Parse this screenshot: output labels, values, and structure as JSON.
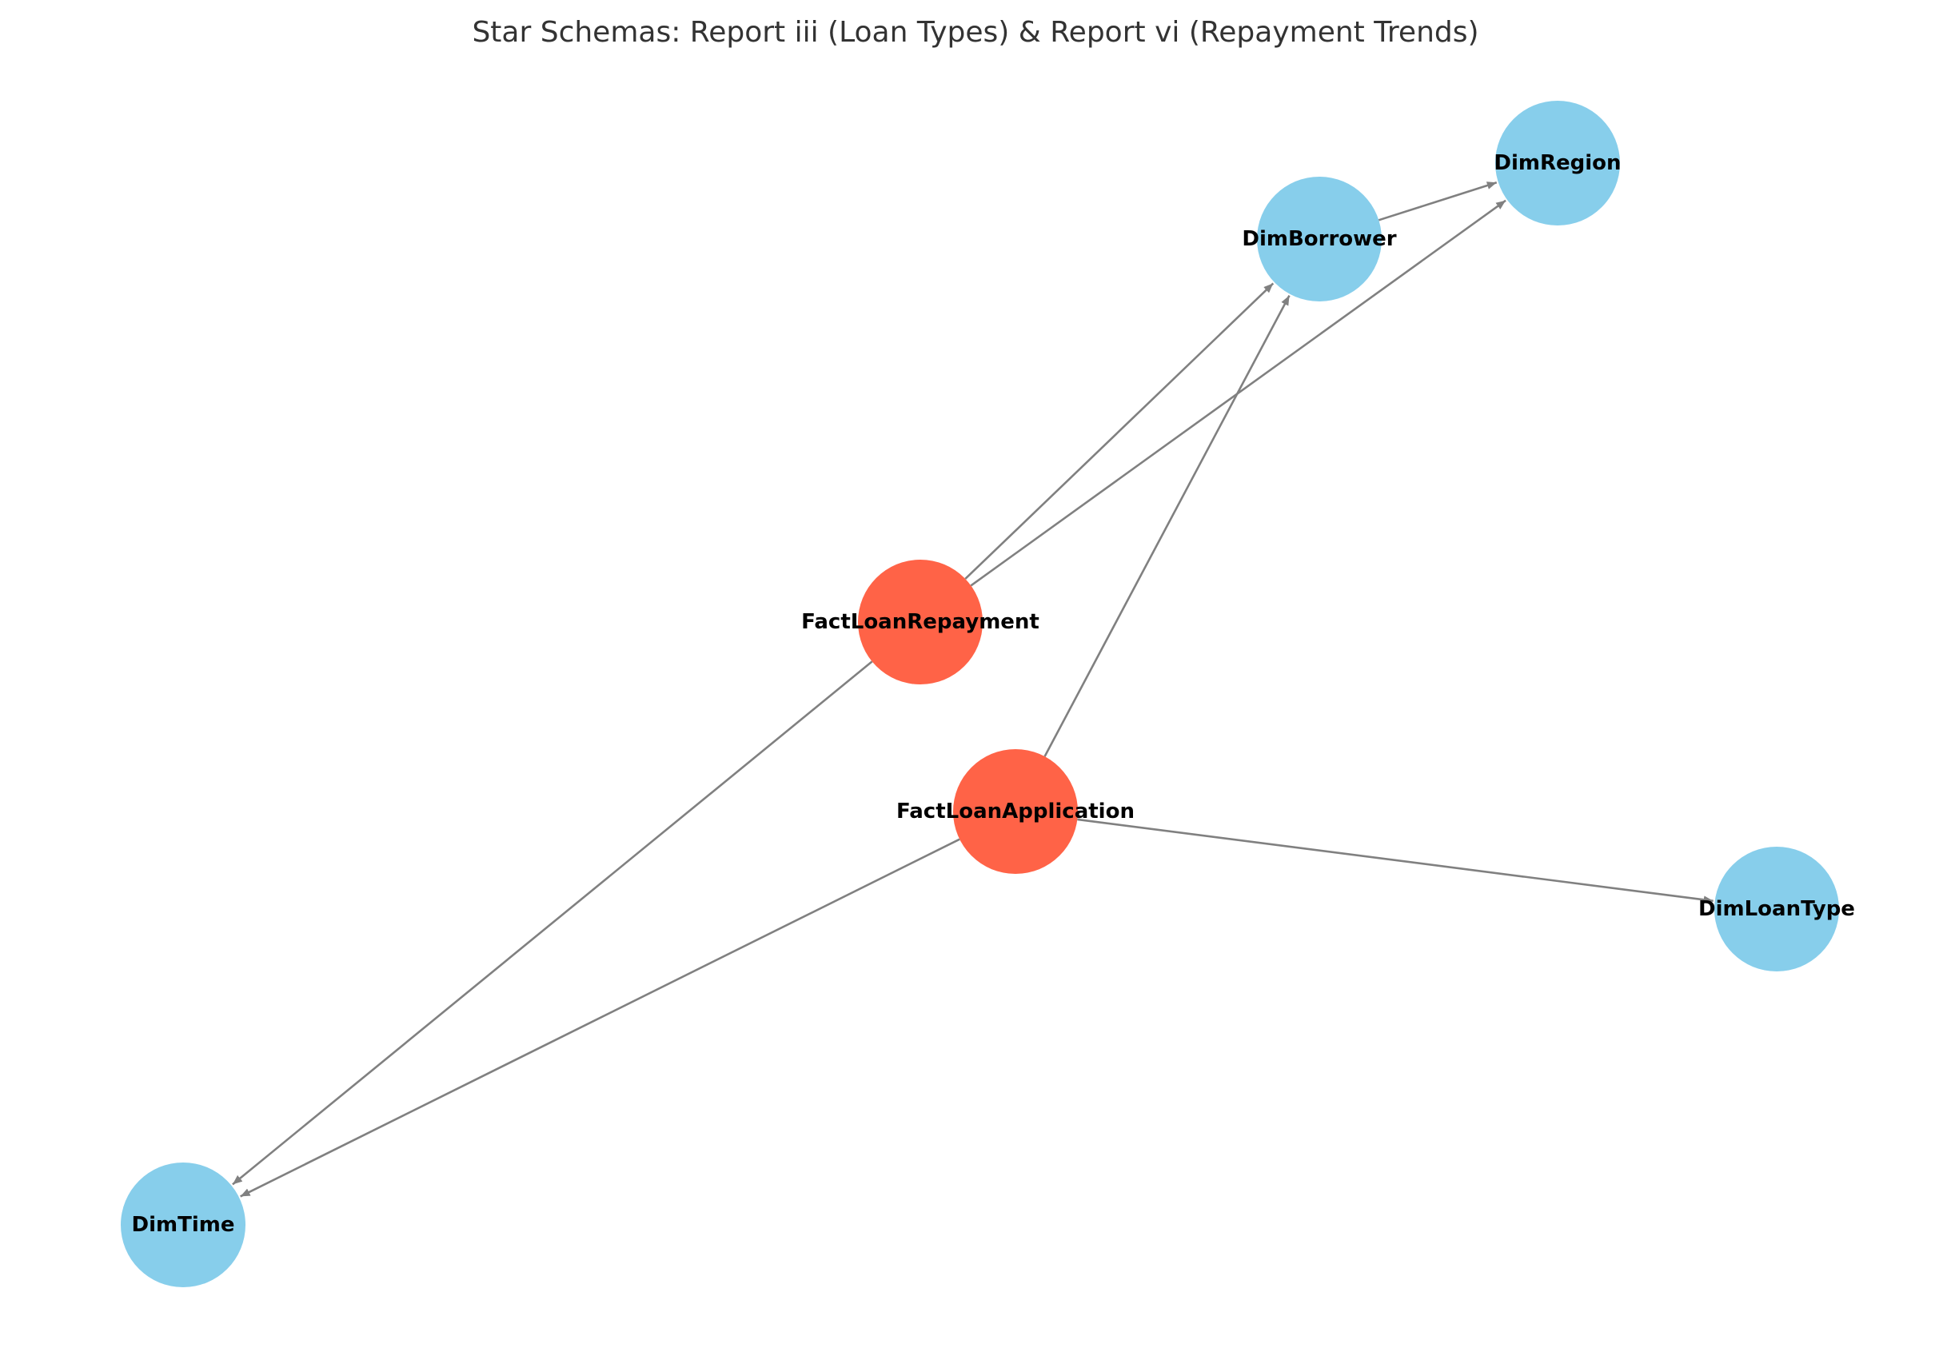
{
  "title": "Star Schemas: Report iii (Loan Types) & Report vi (Repayment Trends)",
  "colors": {
    "fact": "#FF6347",
    "dimension": "#87CEEB",
    "edge": "#808080",
    "title": "#333333",
    "label": "#000000"
  },
  "nodes": [
    {
      "id": "FactLoanRepayment",
      "label": "FactLoanRepayment",
      "kind": "fact"
    },
    {
      "id": "FactLoanApplication",
      "label": "FactLoanApplication",
      "kind": "fact"
    },
    {
      "id": "DimBorrower",
      "label": "DimBorrower",
      "kind": "dimension"
    },
    {
      "id": "DimRegion",
      "label": "DimRegion",
      "kind": "dimension"
    },
    {
      "id": "DimLoanType",
      "label": "DimLoanType",
      "kind": "dimension"
    },
    {
      "id": "DimTime",
      "label": "DimTime",
      "kind": "dimension"
    }
  ],
  "edges": [
    {
      "from": "DimBorrower",
      "to": "DimRegion"
    },
    {
      "from": "FactLoanRepayment",
      "to": "DimBorrower"
    },
    {
      "from": "FactLoanRepayment",
      "to": "DimRegion"
    },
    {
      "from": "FactLoanRepayment",
      "to": "DimTime"
    },
    {
      "from": "FactLoanApplication",
      "to": "DimBorrower"
    },
    {
      "from": "FactLoanApplication",
      "to": "DimTime"
    },
    {
      "from": "FactLoanApplication",
      "to": "DimLoanType"
    }
  ]
}
